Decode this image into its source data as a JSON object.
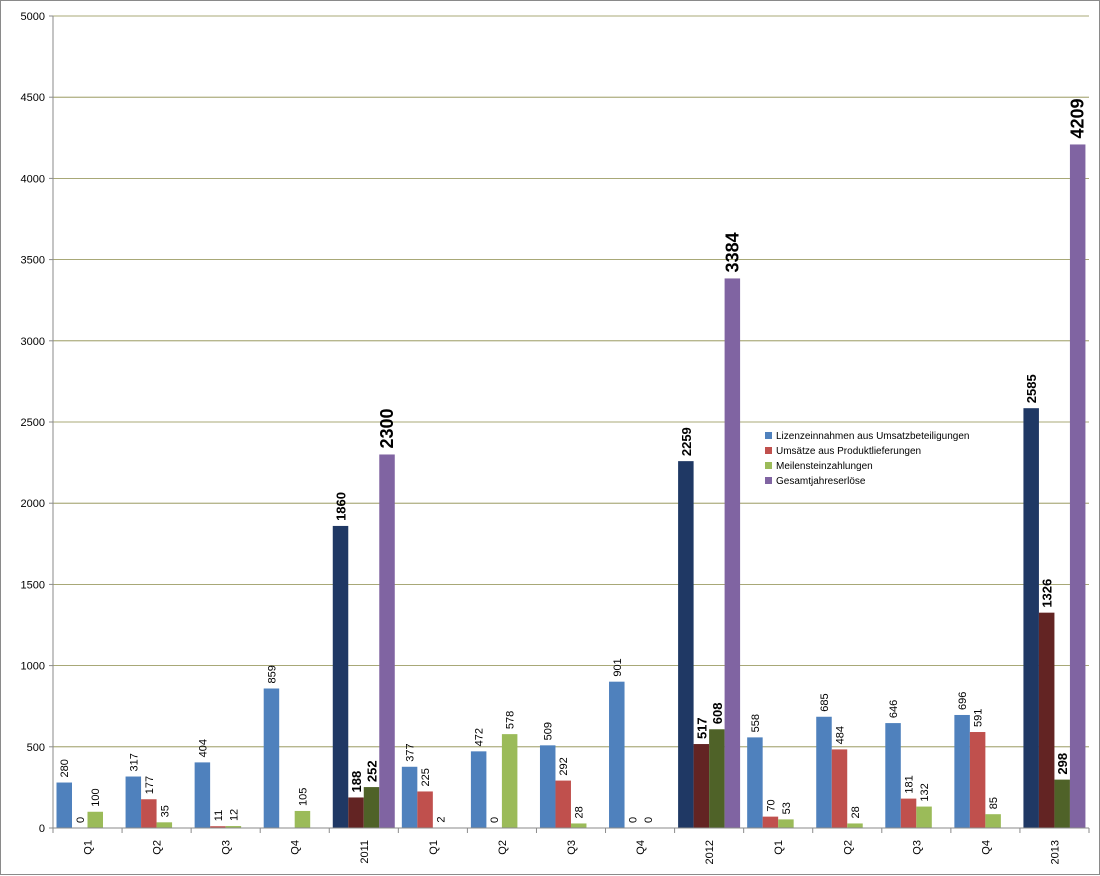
{
  "chart_data": {
    "type": "bar",
    "title": "",
    "xlabel": "",
    "ylabel": "",
    "ylim": [
      0,
      5000
    ],
    "yticks": [
      0,
      500,
      1000,
      1500,
      2000,
      2500,
      3000,
      3500,
      4000,
      4500,
      5000
    ],
    "grid": true,
    "legend_position": "right-middle",
    "categories": [
      "Q1",
      "Q2",
      "Q3",
      "Q4",
      "2011",
      "Q1",
      "Q2",
      "Q3",
      "Q4",
      "2012",
      "Q1",
      "Q2",
      "Q3",
      "Q4",
      "2013"
    ],
    "annual_indices": [
      4,
      9,
      14
    ],
    "series": [
      {
        "name": "Lizenzeinnahmen aus Umsatzbeteiligungen",
        "color": "#4F81BD",
        "annual_color": "#1F3864",
        "values": [
          280,
          317,
          404,
          859,
          1860,
          377,
          472,
          509,
          901,
          2259,
          558,
          685,
          646,
          696,
          2585
        ]
      },
      {
        "name": "Umsätze aus Produktlieferungen",
        "color": "#C0504D",
        "annual_color": "#632423",
        "values": [
          0,
          177,
          11,
          null,
          188,
          225,
          0,
          292,
          0,
          517,
          70,
          484,
          181,
          591,
          1326
        ]
      },
      {
        "name": "Meilensteinzahlungen",
        "color": "#9BBB59",
        "annual_color": "#4F6228",
        "values": [
          100,
          35,
          12,
          105,
          252,
          2,
          578,
          28,
          0,
          608,
          53,
          28,
          132,
          85,
          298
        ]
      },
      {
        "name": "Gesamtjahreserlöse",
        "color": "#8064A2",
        "annual_color": "#8064A2",
        "values": [
          null,
          null,
          null,
          null,
          2300,
          null,
          null,
          null,
          null,
          3384,
          null,
          null,
          null,
          null,
          4209
        ]
      }
    ]
  }
}
